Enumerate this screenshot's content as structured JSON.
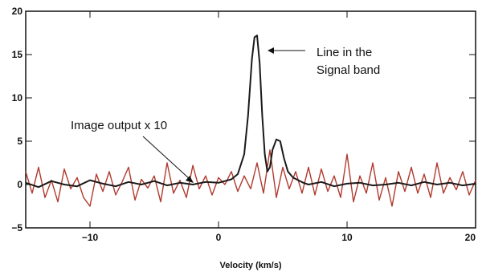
{
  "chart_data": {
    "type": "line",
    "xlabel": "Velocity (km/s)",
    "ylabel": "",
    "xlim": [
      -15,
      20
    ],
    "ylim": [
      -5,
      20
    ],
    "x_ticks": [
      -10,
      0,
      10,
      20
    ],
    "x_tick_labels": [
      "−10",
      "0",
      "10",
      "20"
    ],
    "y_ticks": [
      -5,
      0,
      5,
      10,
      15,
      20
    ],
    "y_tick_labels": [
      "−5",
      "0",
      "5",
      "10",
      "15",
      "20"
    ],
    "grid": false,
    "series": [
      {
        "color": "#1a1a1a",
        "x": [
          -15,
          -14,
          -13,
          -12,
          -11,
          -10,
          -9,
          -8,
          -7,
          -6,
          -5,
          -4,
          -3,
          -2,
          -1,
          0,
          0.5,
          1,
          1.5,
          2,
          2.3,
          2.6,
          2.8,
          3.0,
          3.2,
          3.4,
          3.6,
          3.8,
          4.0,
          4.2,
          4.5,
          4.8,
          5.1,
          5.4,
          5.8,
          6.2,
          6.6,
          7,
          8,
          9,
          10,
          11,
          12,
          13,
          14,
          15,
          16,
          17,
          18,
          19,
          20
        ],
        "values": [
          0.2,
          -0.3,
          0.4,
          0.0,
          -0.2,
          0.5,
          0.1,
          -0.2,
          0.3,
          0.0,
          0.4,
          -0.1,
          0.2,
          0.0,
          0.3,
          0.2,
          0.4,
          0.6,
          1.2,
          3.5,
          8.0,
          14.5,
          17.0,
          17.2,
          14.0,
          8.0,
          3.5,
          1.5,
          2.0,
          4.0,
          5.2,
          5.0,
          3.0,
          1.5,
          0.8,
          0.5,
          0.2,
          0.0,
          0.3,
          -0.2,
          0.1,
          0.2,
          -0.1,
          0.0,
          0.2,
          -0.1,
          0.3,
          0.0,
          0.2,
          -0.1,
          0.1
        ]
      },
      {
        "color": "#b03a2e",
        "x": [
          -15,
          -14.5,
          -14,
          -13.5,
          -13,
          -12.5,
          -12,
          -11.5,
          -11,
          -10.5,
          -10,
          -9.5,
          -9,
          -8.5,
          -8,
          -7.5,
          -7,
          -6.5,
          -6,
          -5.5,
          -5,
          -4.5,
          -4,
          -3.5,
          -3,
          -2.5,
          -2,
          -1.5,
          -1,
          -0.5,
          0,
          0.5,
          1,
          1.5,
          2,
          2.5,
          3,
          3.5,
          4,
          4.5,
          5,
          5.5,
          6,
          6.5,
          7,
          7.5,
          8,
          8.5,
          9,
          9.5,
          10,
          10.5,
          11,
          11.5,
          12,
          12.5,
          13,
          13.5,
          14,
          14.5,
          15,
          15.5,
          16,
          16.5,
          17,
          17.5,
          18,
          18.5,
          19,
          19.5,
          20
        ],
        "values": [
          1.5,
          -1.0,
          2.0,
          -1.5,
          0.5,
          -2.0,
          1.8,
          -0.5,
          0.8,
          -1.5,
          -2.5,
          1.2,
          -0.8,
          1.5,
          -1.2,
          0.3,
          2.0,
          -1.8,
          0.6,
          -0.4,
          1.0,
          -2.0,
          2.5,
          -1.0,
          0.5,
          -1.5,
          2.2,
          -0.5,
          1.0,
          -1.2,
          0.8,
          0.0,
          1.5,
          -0.8,
          1.0,
          -0.5,
          2.5,
          -1.0,
          4.0,
          -1.5,
          2.0,
          -0.5,
          1.5,
          -1.0,
          2.0,
          -1.2,
          1.8,
          -0.8,
          1.0,
          -1.5,
          3.5,
          -2.0,
          1.0,
          -1.0,
          2.5,
          -1.8,
          0.8,
          -2.5,
          1.5,
          -0.8,
          2.0,
          -1.0,
          1.2,
          -1.5,
          2.5,
          -1.0,
          0.8,
          -0.6,
          1.5,
          -1.2,
          0.5
        ]
      }
    ],
    "annotations": [
      {
        "text_lines": [
          "Line in the",
          "Signal band"
        ],
        "x": 3.1,
        "y": 17.2
      },
      {
        "text_lines": [
          "Image output x 10"
        ],
        "x": -2.0,
        "y": 1.6
      }
    ]
  }
}
